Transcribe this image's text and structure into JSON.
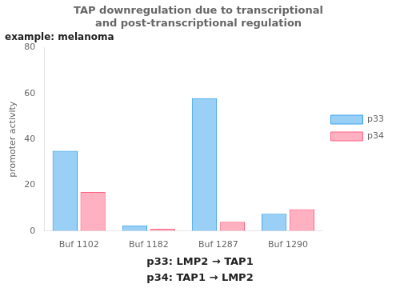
{
  "chart_data": {
    "type": "bar",
    "title": [
      "TAP downregulation due to transcriptional",
      "and post-transcriptional regulation"
    ],
    "subtitle": "example: melanoma",
    "ylabel": "promoter activity",
    "annotations": [
      "p33: LMP2 → TAP1",
      "p34: TAP1 → LMP2"
    ],
    "categories": [
      "Buf 1102",
      "Buf 1182",
      "Buf 1287",
      "Buf 1290"
    ],
    "series": [
      {
        "name": "p33",
        "values": [
          35,
          2.5,
          58,
          7.5
        ]
      },
      {
        "name": "p34",
        "values": [
          17,
          1.0,
          4.0,
          9.5
        ]
      }
    ],
    "ylim": [
      0,
      80
    ],
    "yticks": [
      0,
      20,
      40,
      60,
      80
    ],
    "grid": false,
    "legend": "right"
  }
}
